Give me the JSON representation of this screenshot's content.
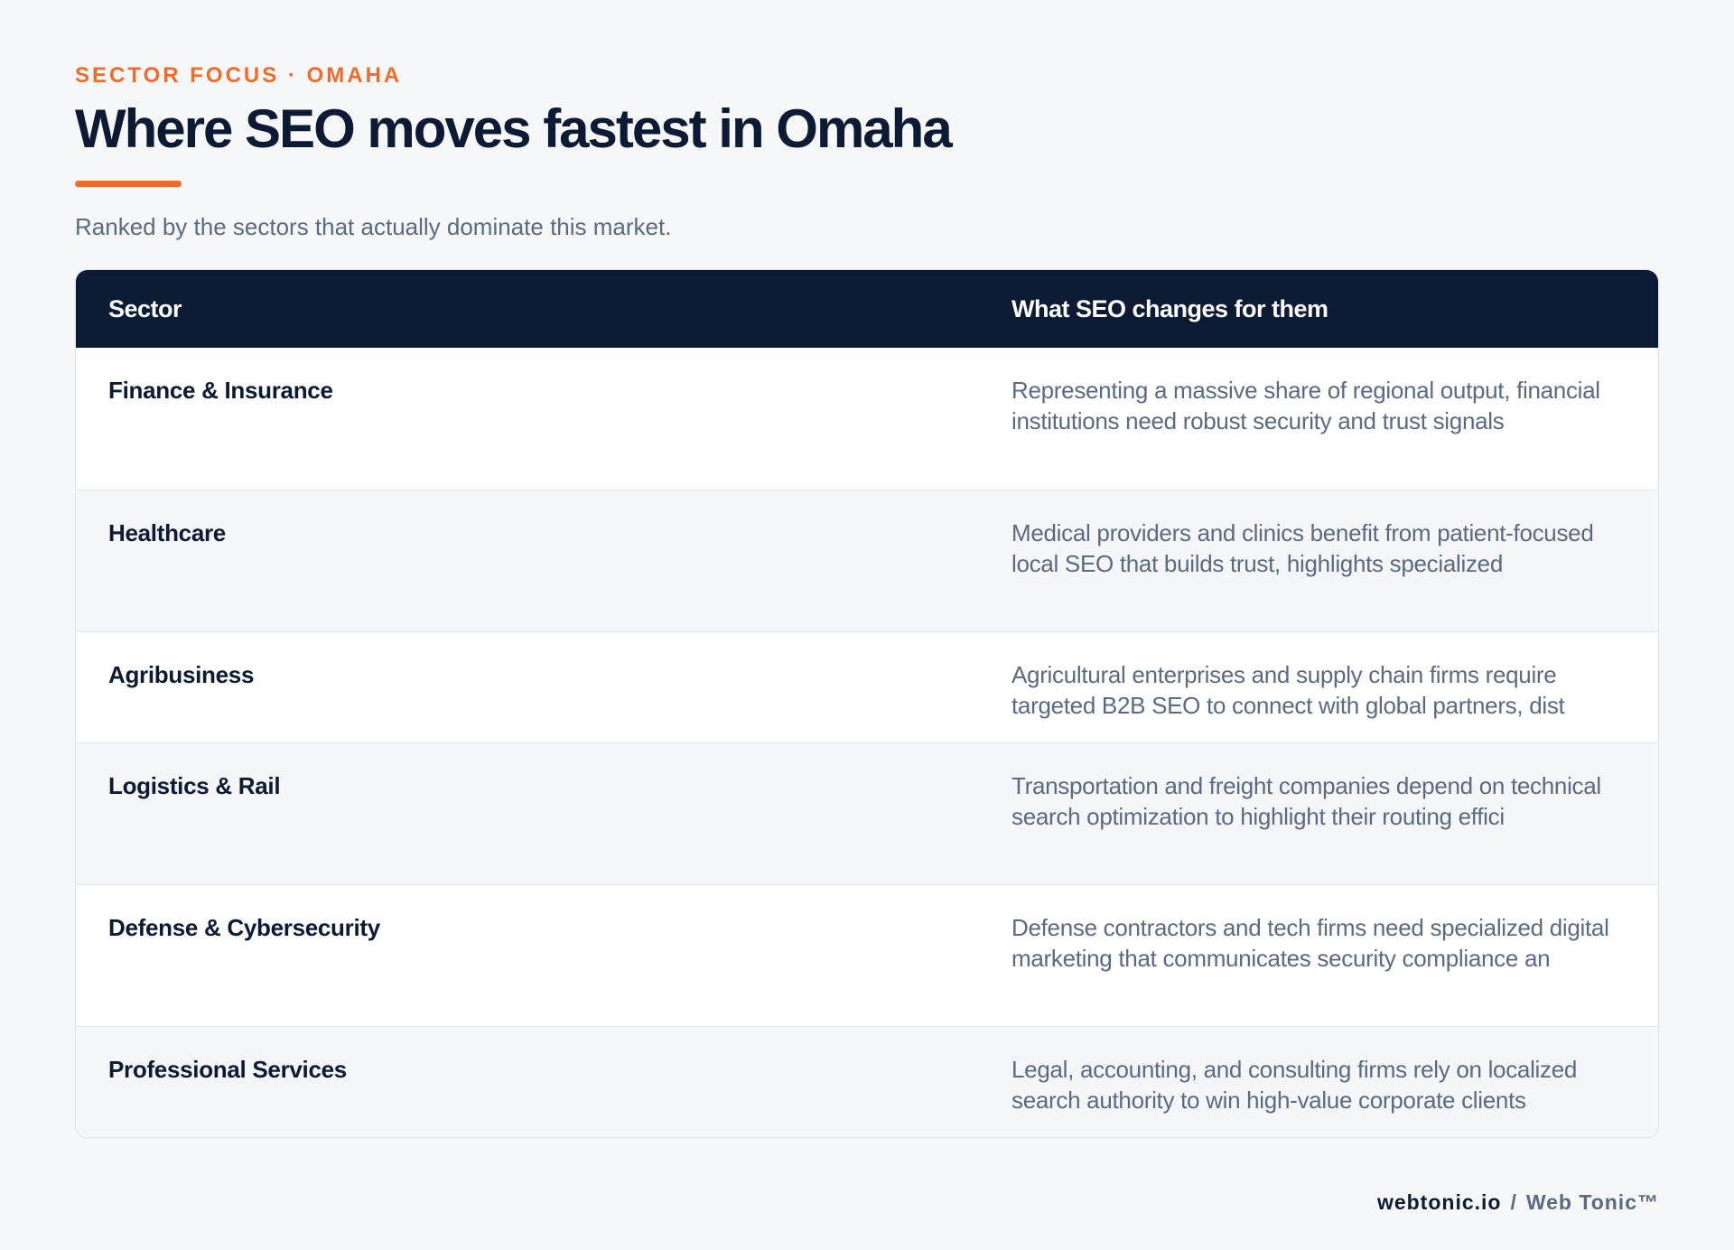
{
  "header": {
    "eyebrow": "SECTOR FOCUS · OMAHA",
    "title": "Where SEO moves fastest in Omaha",
    "subtitle": "Ranked by the sectors that actually dominate this market."
  },
  "table": {
    "columns": [
      "Sector",
      "What SEO changes for them"
    ],
    "rows": [
      {
        "sector": "Finance & Insurance",
        "change": "Representing a massive share of regional output, financial institutions need robust security and trust signals"
      },
      {
        "sector": "Healthcare",
        "change": "Medical providers and clinics benefit from patient-focused local SEO that builds trust, highlights specialized"
      },
      {
        "sector": "Agribusiness",
        "change": "Agricultural enterprises and supply chain firms require targeted B2B SEO to connect with global partners, dist"
      },
      {
        "sector": "Logistics & Rail",
        "change": "Transportation and freight companies depend on technical search optimization to highlight their routing effici"
      },
      {
        "sector": "Defense & Cybersecurity",
        "change": "Defense contractors and tech firms need specialized digital marketing that communicates security compliance an"
      },
      {
        "sector": "Professional Services",
        "change": "Legal, accounting, and consulting firms rely on localized search authority to win high-value corporate clients"
      }
    ]
  },
  "footer": {
    "domain": "webtonic.io",
    "separator": "/",
    "brand": "Web Tonic™"
  },
  "colors": {
    "accent": "#f26b2a",
    "navy": "#0c1a33",
    "muted": "#5b6a80",
    "background": "#f6f7f9"
  }
}
